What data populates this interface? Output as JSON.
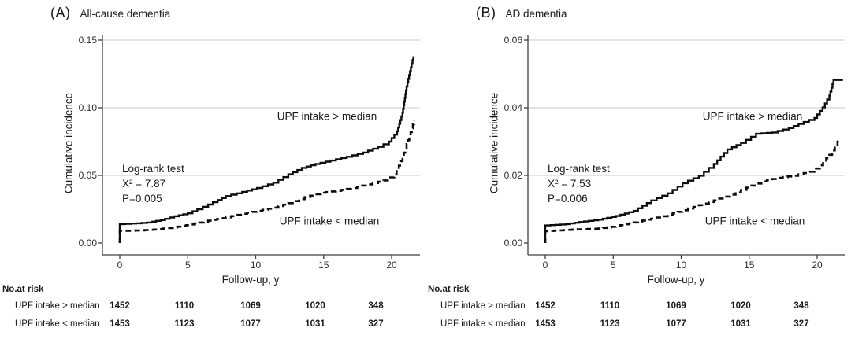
{
  "figure": {
    "background": "#ffffff",
    "text_color": "#1a1a1a",
    "grid_color": "#c9c9c9",
    "axis_color": "#404040",
    "curve_color": "#0d0d0d"
  },
  "panels": [
    {
      "label": "(A)",
      "title": "All-cause dementia",
      "ylabel": "Cumulative incidence",
      "xlabel": "Follow-up, y",
      "annotation": {
        "line1": "Log-rank test",
        "line2": "X² = 7.87",
        "line3": "P=0.005"
      },
      "curve_labels": {
        "above": "UPF intake > median",
        "below": "UPF intake < median"
      },
      "risk_table": {
        "header": "No.at risk",
        "rows": [
          {
            "label": "UPF intake > median",
            "values": [
              "1452",
              "1110",
              "1069",
              "1020",
              "348"
            ]
          },
          {
            "label": "UPF intake < median",
            "values": [
              "1453",
              "1123",
              "1077",
              "1031",
              "327"
            ]
          }
        ]
      }
    },
    {
      "label": "(B)",
      "title": "AD dementia",
      "ylabel": "Cumulative incidence",
      "xlabel": "Follow-up, y",
      "annotation": {
        "line1": "Log-rank test",
        "line2": "X² = 7.53",
        "line3": "P=0.006"
      },
      "curve_labels": {
        "above": "UPF intake > median",
        "below": "UPF intake < median"
      },
      "risk_table": {
        "header": "No.at risk",
        "rows": [
          {
            "label": "UPF intake > median",
            "values": [
              "1452",
              "1110",
              "1069",
              "1020",
              "348"
            ]
          },
          {
            "label": "UPF intake < median",
            "values": [
              "1453",
              "1123",
              "1077",
              "1031",
              "327"
            ]
          }
        ]
      }
    }
  ],
  "chart_data": [
    {
      "type": "line",
      "subtype": "step-cumulative-incidence",
      "panel": "A",
      "title": "All-cause dementia",
      "xlabel": "Follow-up, y",
      "ylabel": "Cumulative incidence",
      "xlim": [
        0,
        22
      ],
      "ylim": [
        0,
        0.15
      ],
      "xticks": [
        "0",
        "5",
        "10",
        "15",
        "20"
      ],
      "yticks": [
        "0.00",
        "0.05",
        "0.10",
        "0.15"
      ],
      "grid": "horizontal",
      "legend": "inline-labels",
      "log_rank": {
        "chi_square": 7.87,
        "p_value": 0.005
      },
      "series": [
        {
          "name": "UPF intake > median",
          "style": "solid",
          "points": [
            [
              0,
              0
            ],
            [
              0,
              0.014
            ],
            [
              1.2,
              0.0146
            ],
            [
              2,
              0.0152
            ],
            [
              3,
              0.017
            ],
            [
              4,
              0.0198
            ],
            [
              5,
              0.022
            ],
            [
              5.7,
              0.025
            ],
            [
              6.5,
              0.0285
            ],
            [
              7.2,
              0.0318
            ],
            [
              7.8,
              0.0347
            ],
            [
              9,
              0.0378
            ],
            [
              10.1,
              0.0407
            ],
            [
              11.3,
              0.0446
            ],
            [
              12.4,
              0.0508
            ],
            [
              13.4,
              0.0556
            ],
            [
              14.4,
              0.0585
            ],
            [
              15.5,
              0.061
            ],
            [
              16.7,
              0.0638
            ],
            [
              17.9,
              0.0669
            ],
            [
              19,
              0.0711
            ],
            [
              19.8,
              0.075
            ],
            [
              20.4,
              0.0827
            ],
            [
              20.8,
              0.0963
            ],
            [
              21.1,
              0.1157
            ],
            [
              21.35,
              0.127
            ],
            [
              21.6,
              0.138
            ]
          ]
        },
        {
          "name": "UPF intake < median",
          "style": "dashed",
          "points": [
            [
              0,
              0
            ],
            [
              0,
              0.009
            ],
            [
              1.5,
              0.0093
            ],
            [
              2.5,
              0.01
            ],
            [
              3.9,
              0.0115
            ],
            [
              5.2,
              0.0138
            ],
            [
              6.5,
              0.0165
            ],
            [
              7.8,
              0.019
            ],
            [
              9,
              0.0217
            ],
            [
              10.1,
              0.0238
            ],
            [
              11.3,
              0.0262
            ],
            [
              12.4,
              0.0295
            ],
            [
              13.6,
              0.0339
            ],
            [
              14.8,
              0.0372
            ],
            [
              15.9,
              0.0386
            ],
            [
              17.1,
              0.0407
            ],
            [
              18.2,
              0.0434
            ],
            [
              19.4,
              0.0463
            ],
            [
              20.2,
              0.0508
            ],
            [
              20.7,
              0.0605
            ],
            [
              21.1,
              0.0731
            ],
            [
              21.4,
              0.082
            ],
            [
              21.65,
              0.0905
            ]
          ]
        }
      ],
      "no_at_risk": {
        "times": [
          0,
          5,
          10,
          15,
          20
        ],
        "series": [
          {
            "name": "UPF intake > median",
            "counts": [
              1452,
              1110,
              1069,
              1020,
              348
            ]
          },
          {
            "name": "UPF intake < median",
            "counts": [
              1453,
              1123,
              1077,
              1031,
              327
            ]
          }
        ]
      }
    },
    {
      "type": "line",
      "subtype": "step-cumulative-incidence",
      "panel": "B",
      "title": "AD dementia",
      "xlabel": "Follow-up, y",
      "ylabel": "Cumulative incidence",
      "xlim": [
        0,
        22
      ],
      "ylim": [
        0,
        0.06
      ],
      "xticks": [
        "0",
        "5",
        "10",
        "15",
        "20"
      ],
      "yticks": [
        "0.00",
        "0.02",
        "0.04",
        "0.06"
      ],
      "grid": "horizontal",
      "legend": "inline-labels",
      "log_rank": {
        "chi_square": 7.53,
        "p_value": 0.006
      },
      "series": [
        {
          "name": "UPF intake > median",
          "style": "solid",
          "points": [
            [
              0,
              0
            ],
            [
              0,
              0.0052
            ],
            [
              1.5,
              0.0056
            ],
            [
              2.5,
              0.0062
            ],
            [
              3.9,
              0.0069
            ],
            [
              5.2,
              0.008
            ],
            [
              6.5,
              0.0095
            ],
            [
              7.8,
              0.0126
            ],
            [
              9,
              0.0147
            ],
            [
              10.1,
              0.0177
            ],
            [
              11.3,
              0.0199
            ],
            [
              12.4,
              0.0234
            ],
            [
              13.4,
              0.0277
            ],
            [
              14.4,
              0.0296
            ],
            [
              15.5,
              0.0323
            ],
            [
              16.7,
              0.0327
            ],
            [
              17.9,
              0.034
            ],
            [
              19,
              0.0358
            ],
            [
              19.8,
              0.037
            ],
            [
              20.4,
              0.0401
            ],
            [
              20.9,
              0.0436
            ],
            [
              21.2,
              0.0482
            ],
            [
              21.9,
              0.0482
            ]
          ]
        },
        {
          "name": "UPF intake < median",
          "style": "dashed",
          "points": [
            [
              0,
              0
            ],
            [
              0,
              0.0035
            ],
            [
              2,
              0.004
            ],
            [
              3.9,
              0.0043
            ],
            [
              5.2,
              0.005
            ],
            [
              6.5,
              0.0061
            ],
            [
              7.8,
              0.0072
            ],
            [
              9,
              0.0083
            ],
            [
              10.1,
              0.0097
            ],
            [
              11.3,
              0.0112
            ],
            [
              12.4,
              0.0126
            ],
            [
              13.6,
              0.0143
            ],
            [
              14.8,
              0.0164
            ],
            [
              15.9,
              0.0182
            ],
            [
              17.1,
              0.0193
            ],
            [
              18.2,
              0.0199
            ],
            [
              19.4,
              0.0211
            ],
            [
              20.2,
              0.023
            ],
            [
              20.9,
              0.0261
            ],
            [
              21.5,
              0.03
            ],
            [
              21.7,
              0.0306
            ]
          ]
        }
      ],
      "no_at_risk": {
        "times": [
          0,
          5,
          10,
          15,
          20
        ],
        "series": [
          {
            "name": "UPF intake > median",
            "counts": [
              1452,
              1110,
              1069,
              1020,
              348
            ]
          },
          {
            "name": "UPF intake < median",
            "counts": [
              1453,
              1123,
              1077,
              1031,
              327
            ]
          }
        ]
      }
    }
  ]
}
